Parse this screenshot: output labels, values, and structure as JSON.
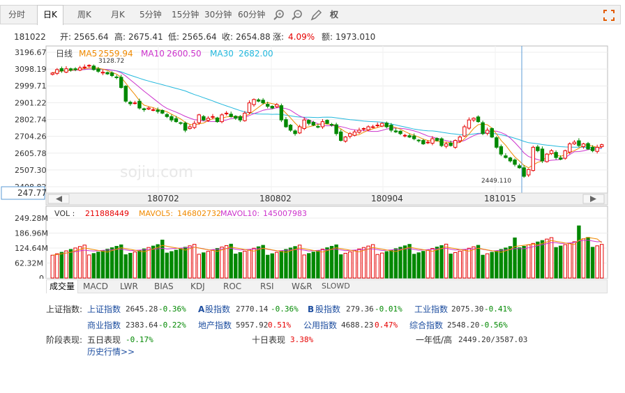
{
  "tabs": [
    "分时",
    "日K",
    "周K",
    "月K",
    "5分钟",
    "15分钟",
    "30分钟",
    "60分钟"
  ],
  "tools": {
    "zoom_in": "zoom-in-icon",
    "zoom_out": "zoom-out-icon",
    "draw": "pencil-icon",
    "rights_label": "权",
    "fullscreen": "fullscreen-icon"
  },
  "info": {
    "date": "181022",
    "open_label": "开:",
    "open": "2565.64",
    "high_label": "高:",
    "high": "2675.41",
    "low_label": "低:",
    "low": "2565.64",
    "close_label": "收:",
    "close": "2654.88",
    "change_label": "涨:",
    "change": "4.09%",
    "amount_label": "额:",
    "amount": "1973.010"
  },
  "price_chart": {
    "series_label": "日线",
    "ma5_label": "MA5",
    "ma5_value": "2559.94",
    "ma10_label": "MA10",
    "ma10_value": "2600.50",
    "ma30_label": "MA30",
    "ma30_value": "2682.00",
    "y_ticks": [
      "3196.67",
      "3098.19",
      "2999.71",
      "2901.22",
      "2802.74",
      "2704.26",
      "2605.78",
      "2507.30",
      "2408.82"
    ],
    "cursor_value": "247.77",
    "high_annotation": "3128.72",
    "low_annotation": "2449.110",
    "x_labels": [
      "180702",
      "180802",
      "180904",
      "181015"
    ],
    "watermark": "sojiu.com"
  },
  "volume_chart": {
    "vol_label": "VOL :",
    "vol_value": "211888449",
    "mavol5_label": "MAVOL5:",
    "mavol5_value": "146802732",
    "mavol10_label": "MAVOL10:",
    "mavol10_value": "145007983",
    "y_ticks": [
      "249.28M",
      "186.96M",
      "124.64M",
      "62.32M",
      "0"
    ]
  },
  "indicator_tabs": [
    "成交量",
    "MACD",
    "LWR",
    "BIAS",
    "KDJ",
    "ROC",
    "RSI",
    "W&R",
    "SLOWD"
  ],
  "indices": {
    "row1_label": "上证指数:",
    "sh_name": "上证指数",
    "sh_value": "2645.28",
    "sh_change": "-0.36%",
    "a_name": "股指数",
    "a_prefix": "A",
    "a_value": "2770.14",
    "a_change": "-0.36%",
    "b_name": "股指数",
    "b_prefix": "B",
    "b_value": "279.36",
    "b_change": "-0.01%",
    "ind_name": "工业指数",
    "ind_value": "2075.30",
    "ind_change": "-0.41%",
    "com_name": "商业指数",
    "com_value": "2383.64",
    "com_change": "-0.22%",
    "re_name": "地产指数",
    "re_value": "5957.92",
    "re_change": "0.51%",
    "pu_name": "公用指数",
    "pu_value": "4688.23",
    "pu_change": "0.47%",
    "comp_name": "综合指数",
    "comp_value": "2548.20",
    "comp_change": "-0.56%"
  },
  "performance": {
    "label": "阶段表现:",
    "d5_label": "五日表现",
    "d5_value": "-0.17%",
    "d10_label": "十日表现",
    "d10_value": "3.38%",
    "year_label": "一年低/高",
    "year_value": "2449.20/3587.03",
    "history_link": "历史行情>>"
  },
  "colors": {
    "up": "#e60000",
    "down": "#008800",
    "ma5": "#f08a00",
    "ma10": "#cc33cc",
    "ma30": "#22b8dd",
    "cursor": "#5b9bd5"
  },
  "chart_data": {
    "type": "candlestick",
    "categories": [
      "180702",
      "180802",
      "180904",
      "181015"
    ],
    "ohlc_close": [
      3075,
      3095,
      3088,
      3100,
      3092,
      3098,
      3105,
      3110,
      3120,
      3095,
      3085,
      3080,
      3070,
      3060,
      3050,
      2990,
      2910,
      2895,
      2900,
      2870,
      2860,
      2870,
      2860,
      2850,
      2840,
      2820,
      2800,
      2790,
      2780,
      2740,
      2760,
      2780,
      2830,
      2800,
      2810,
      2820,
      2790,
      2830,
      2840,
      2820,
      2810,
      2800,
      2840,
      2900,
      2920,
      2910,
      2900,
      2880,
      2870,
      2890,
      2800,
      2760,
      2740,
      2720,
      2760,
      2800,
      2780,
      2770,
      2760,
      2790,
      2780,
      2770,
      2720,
      2680,
      2700,
      2720,
      2730,
      2740,
      2750,
      2760,
      2760,
      2770,
      2780,
      2760,
      2740,
      2730,
      2720,
      2710,
      2700,
      2690,
      2680,
      2660,
      2670,
      2690,
      2680,
      2650,
      2660,
      2650,
      2680,
      2700,
      2760,
      2800,
      2810,
      2790,
      2720,
      2740,
      2700,
      2640,
      2600,
      2580,
      2560,
      2540,
      2520,
      2470,
      2510,
      2640,
      2620,
      2560,
      2600,
      2620,
      2580,
      2570,
      2620,
      2660,
      2670,
      2650,
      2660,
      2630,
      2620,
      2640,
      2655
    ],
    "ma_values": {
      "MA5": 2559.94,
      "MA10": 2600.5,
      "MA30": 2682.0
    },
    "ylim": [
      2408.82,
      3196.67
    ],
    "volume": {
      "ylim": [
        0,
        249.28
      ]
    }
  }
}
